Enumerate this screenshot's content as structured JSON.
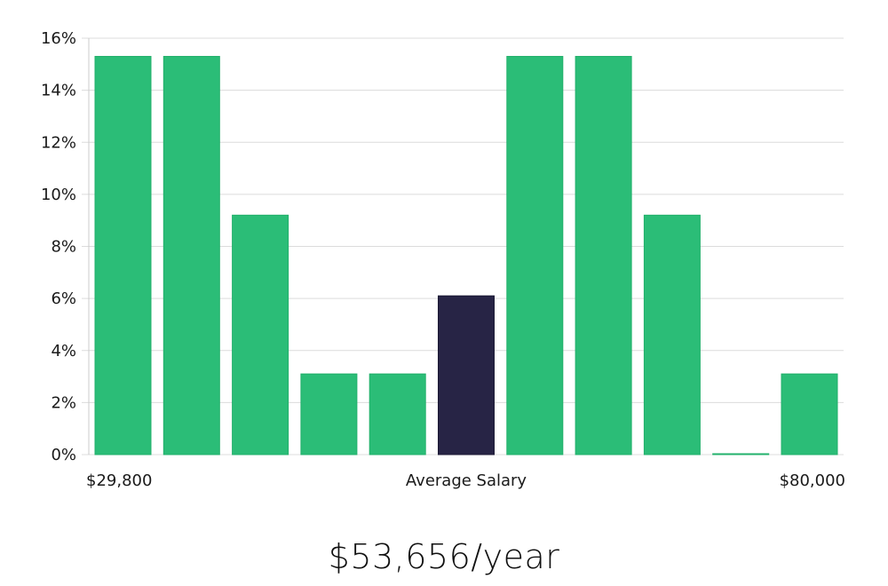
{
  "chart_data": {
    "type": "bar",
    "title": "",
    "xlabel": "Average Salary",
    "ylabel": "",
    "ylim": [
      0,
      16
    ],
    "y_ticks": [
      "0%",
      "2%",
      "4%",
      "6%",
      "8%",
      "10%",
      "12%",
      "14%",
      "16%"
    ],
    "y_tick_values": [
      0,
      2,
      4,
      6,
      8,
      10,
      12,
      14,
      16
    ],
    "x_min_label": "$29,800",
    "x_max_label": "$80,000",
    "values": [
      15.3,
      15.3,
      9.2,
      3.1,
      3.1,
      6.1,
      15.3,
      15.3,
      9.2,
      0.0,
      3.1
    ],
    "highlight_index": 5,
    "grid": true
  },
  "colors": {
    "bar": "#2bbd77",
    "bar_stroke": "#22b06b",
    "highlight": "#272445",
    "highlight_stroke": "#1c1a35"
  },
  "summary": {
    "salary_text": "$53,656/year"
  }
}
